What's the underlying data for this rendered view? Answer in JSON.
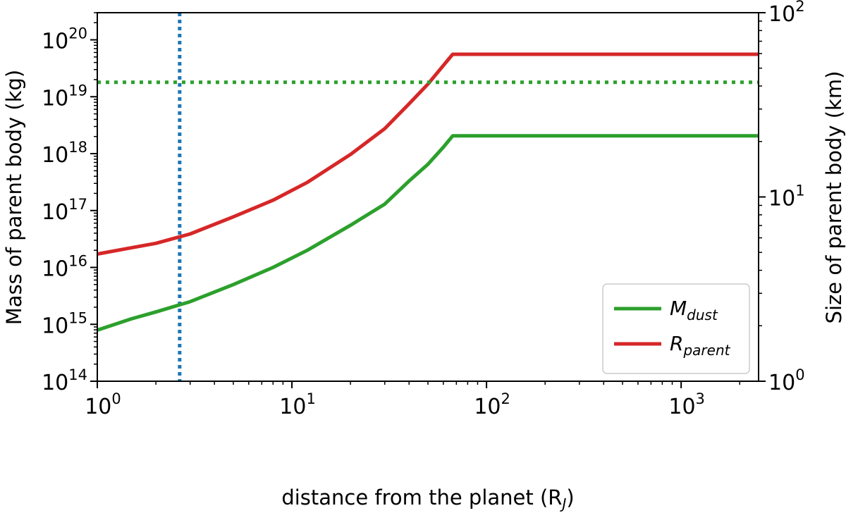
{
  "chart_data": {
    "type": "line",
    "xlabel": "distance from the planet (R",
    "xlabel_sub": "J",
    "xlabel_end": ")",
    "ylabel_left": "Mass of parent body (kg)",
    "ylabel_right": "Size of parent body (km)",
    "x_scale": "log",
    "y_left_scale": "log",
    "y_right_scale": "log",
    "xlim": [
      1,
      2500
    ],
    "ylim_left": [
      100000000000000.0,
      3e+20
    ],
    "ylim_right": [
      1,
      100
    ],
    "grid": false,
    "legend_position": "lower-right",
    "x_ticks": [
      {
        "value": 1,
        "base": "10",
        "exp": "0"
      },
      {
        "value": 10,
        "base": "10",
        "exp": "1"
      },
      {
        "value": 100,
        "base": "10",
        "exp": "2"
      },
      {
        "value": 1000,
        "base": "10",
        "exp": "3"
      }
    ],
    "y_left_ticks": [
      {
        "value": 100000000000000.0,
        "base": "10",
        "exp": "14"
      },
      {
        "value": 1000000000000000.0,
        "base": "10",
        "exp": "15"
      },
      {
        "value": 1e+16,
        "base": "10",
        "exp": "16"
      },
      {
        "value": 1e+17,
        "base": "10",
        "exp": "17"
      },
      {
        "value": 1e+18,
        "base": "10",
        "exp": "18"
      },
      {
        "value": 1e+19,
        "base": "10",
        "exp": "19"
      },
      {
        "value": 1e+20,
        "base": "10",
        "exp": "20"
      }
    ],
    "y_right_ticks": [
      {
        "value": 1,
        "base": "10",
        "exp": "0"
      },
      {
        "value": 10,
        "base": "10",
        "exp": "1"
      },
      {
        "value": 100,
        "base": "10",
        "exp": "2"
      }
    ],
    "series": [
      {
        "name": "M",
        "name_sub": "dust",
        "axis": "left",
        "color": "#2ca02c",
        "style": "solid",
        "x": [
          1,
          1.5,
          2,
          3,
          5,
          8,
          12,
          20,
          30,
          40,
          50,
          60,
          67,
          100,
          300,
          1000,
          2500
        ],
        "y": [
          790000000000000.0,
          1250000000000000.0,
          1650000000000000.0,
          2500000000000000.0,
          5000000000000000.0,
          1e+16,
          2e+16,
          5.5e+16,
          1.3e+17,
          3.3e+17,
          6.5e+17,
          1.3e+18,
          2.05e+18,
          2.05e+18,
          2.05e+18,
          2.05e+18,
          2.05e+18
        ]
      },
      {
        "name": "R",
        "name_sub": "parent",
        "axis": "right",
        "color": "#d62728",
        "style": "solid",
        "x": [
          1,
          1.5,
          2,
          3,
          5,
          8,
          12,
          20,
          30,
          40,
          50,
          67,
          100,
          300,
          1000,
          2500
        ],
        "y": [
          4.9,
          5.3,
          5.6,
          6.3,
          7.8,
          9.6,
          12.0,
          17.0,
          23.5,
          32.0,
          41.0,
          59.5,
          59.5,
          59.5,
          59.5,
          59.5
        ]
      },
      {
        "axis": "left",
        "color": "#2ca02c",
        "style": "dotted",
        "x": [
          1,
          2500
        ],
        "y": [
          1.8e+19,
          1.8e+19
        ]
      }
    ],
    "vlines": [
      {
        "x": 2.65,
        "color": "#1f77b4",
        "style": "dotted"
      }
    ]
  }
}
